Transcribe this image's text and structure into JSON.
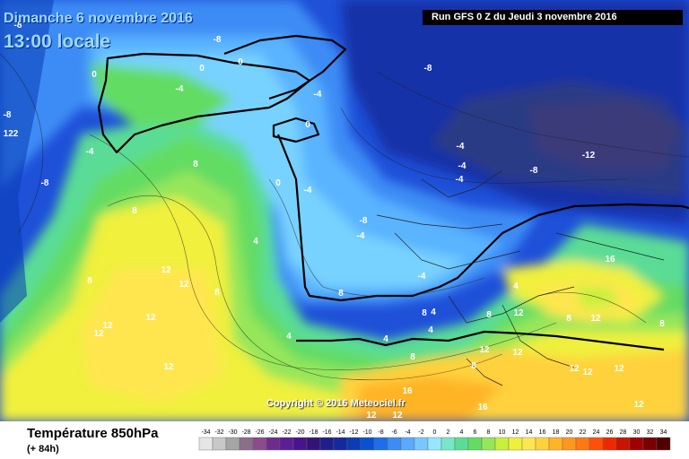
{
  "header": {
    "date_line": "Dimanche 6 novembre 2016",
    "time_line": "13:00 locale",
    "run_info": "Run GFS 0 Z du Jeudi 3 novembre 2016"
  },
  "copyright": "Copyright © 2016 Meteociel.fr",
  "footer": {
    "parameter": "Température 850hPa",
    "forecast_hour": "(+ 84h)"
  },
  "legend": {
    "values": [
      "-34",
      "-32",
      "-30",
      "-28",
      "-26",
      "-24",
      "-22",
      "-20",
      "-18",
      "-16",
      "-14",
      "-12",
      "-10",
      "-8",
      "-6",
      "-4",
      "-2",
      "0",
      "2",
      "4",
      "6",
      "8",
      "10",
      "12",
      "14",
      "16",
      "18",
      "20",
      "22",
      "24",
      "26",
      "28",
      "30",
      "32",
      "34"
    ],
    "colors": [
      "#e6e6e6",
      "#c8c8c8",
      "#a5a5a5",
      "#8a6e8a",
      "#8c4b8c",
      "#6e2d8c",
      "#5a1e96",
      "#46148c",
      "#321478",
      "#1e1e8c",
      "#1428a0",
      "#0a3cb4",
      "#0a50d2",
      "#1e6eeb",
      "#3c8cf5",
      "#5aaaff",
      "#78c8ff",
      "#96e6ff",
      "#78e6c8",
      "#5adc96",
      "#64dc64",
      "#96e65a",
      "#c8f03c",
      "#f0f03c",
      "#ffe650",
      "#ffd23c",
      "#ffb428",
      "#ff961e",
      "#ff7814",
      "#ff500a",
      "#f02800",
      "#c81400",
      "#a00000",
      "#780000",
      "#500000"
    ]
  },
  "map_labels": [
    {
      "text": "-8"
    },
    {
      "text": "-8"
    },
    {
      "text": "0"
    },
    {
      "text": "-8"
    },
    {
      "text": "0"
    },
    {
      "text": "0"
    },
    {
      "text": "-4"
    },
    {
      "text": "-4"
    },
    {
      "text": "0"
    },
    {
      "text": "-8"
    },
    {
      "text": "-8"
    },
    {
      "text": "8"
    },
    {
      "text": "-8"
    },
    {
      "text": "-4"
    },
    {
      "text": "-4"
    },
    {
      "text": "-4"
    },
    {
      "text": "-4"
    },
    {
      "text": "-12"
    },
    {
      "text": "-8"
    },
    {
      "text": "0"
    },
    {
      "text": "-4"
    },
    {
      "text": "-4"
    },
    {
      "text": "8"
    },
    {
      "text": "4"
    },
    {
      "text": "8"
    },
    {
      "text": "12"
    },
    {
      "text": "8"
    },
    {
      "text": "12"
    },
    {
      "text": "-4"
    },
    {
      "text": "8"
    },
    {
      "text": "4"
    },
    {
      "text": "8"
    },
    {
      "text": "12"
    },
    {
      "text": "12"
    },
    {
      "text": "12"
    },
    {
      "text": "4"
    },
    {
      "text": "4"
    },
    {
      "text": "4"
    },
    {
      "text": "4"
    },
    {
      "text": "8"
    },
    {
      "text": "8"
    },
    {
      "text": "12"
    },
    {
      "text": "8"
    },
    {
      "text": "8"
    },
    {
      "text": "12"
    },
    {
      "text": "12"
    },
    {
      "text": "8"
    },
    {
      "text": "12"
    },
    {
      "text": "12"
    },
    {
      "text": "16"
    },
    {
      "text": "12"
    },
    {
      "text": "16"
    },
    {
      "text": "12"
    },
    {
      "text": "12"
    },
    {
      "text": "12"
    },
    {
      "text": "16"
    },
    {
      "text": "12"
    },
    {
      "text": "12"
    },
    {
      "text": "-4"
    },
    {
      "text": "-8"
    },
    {
      "text": "122"
    }
  ]
}
